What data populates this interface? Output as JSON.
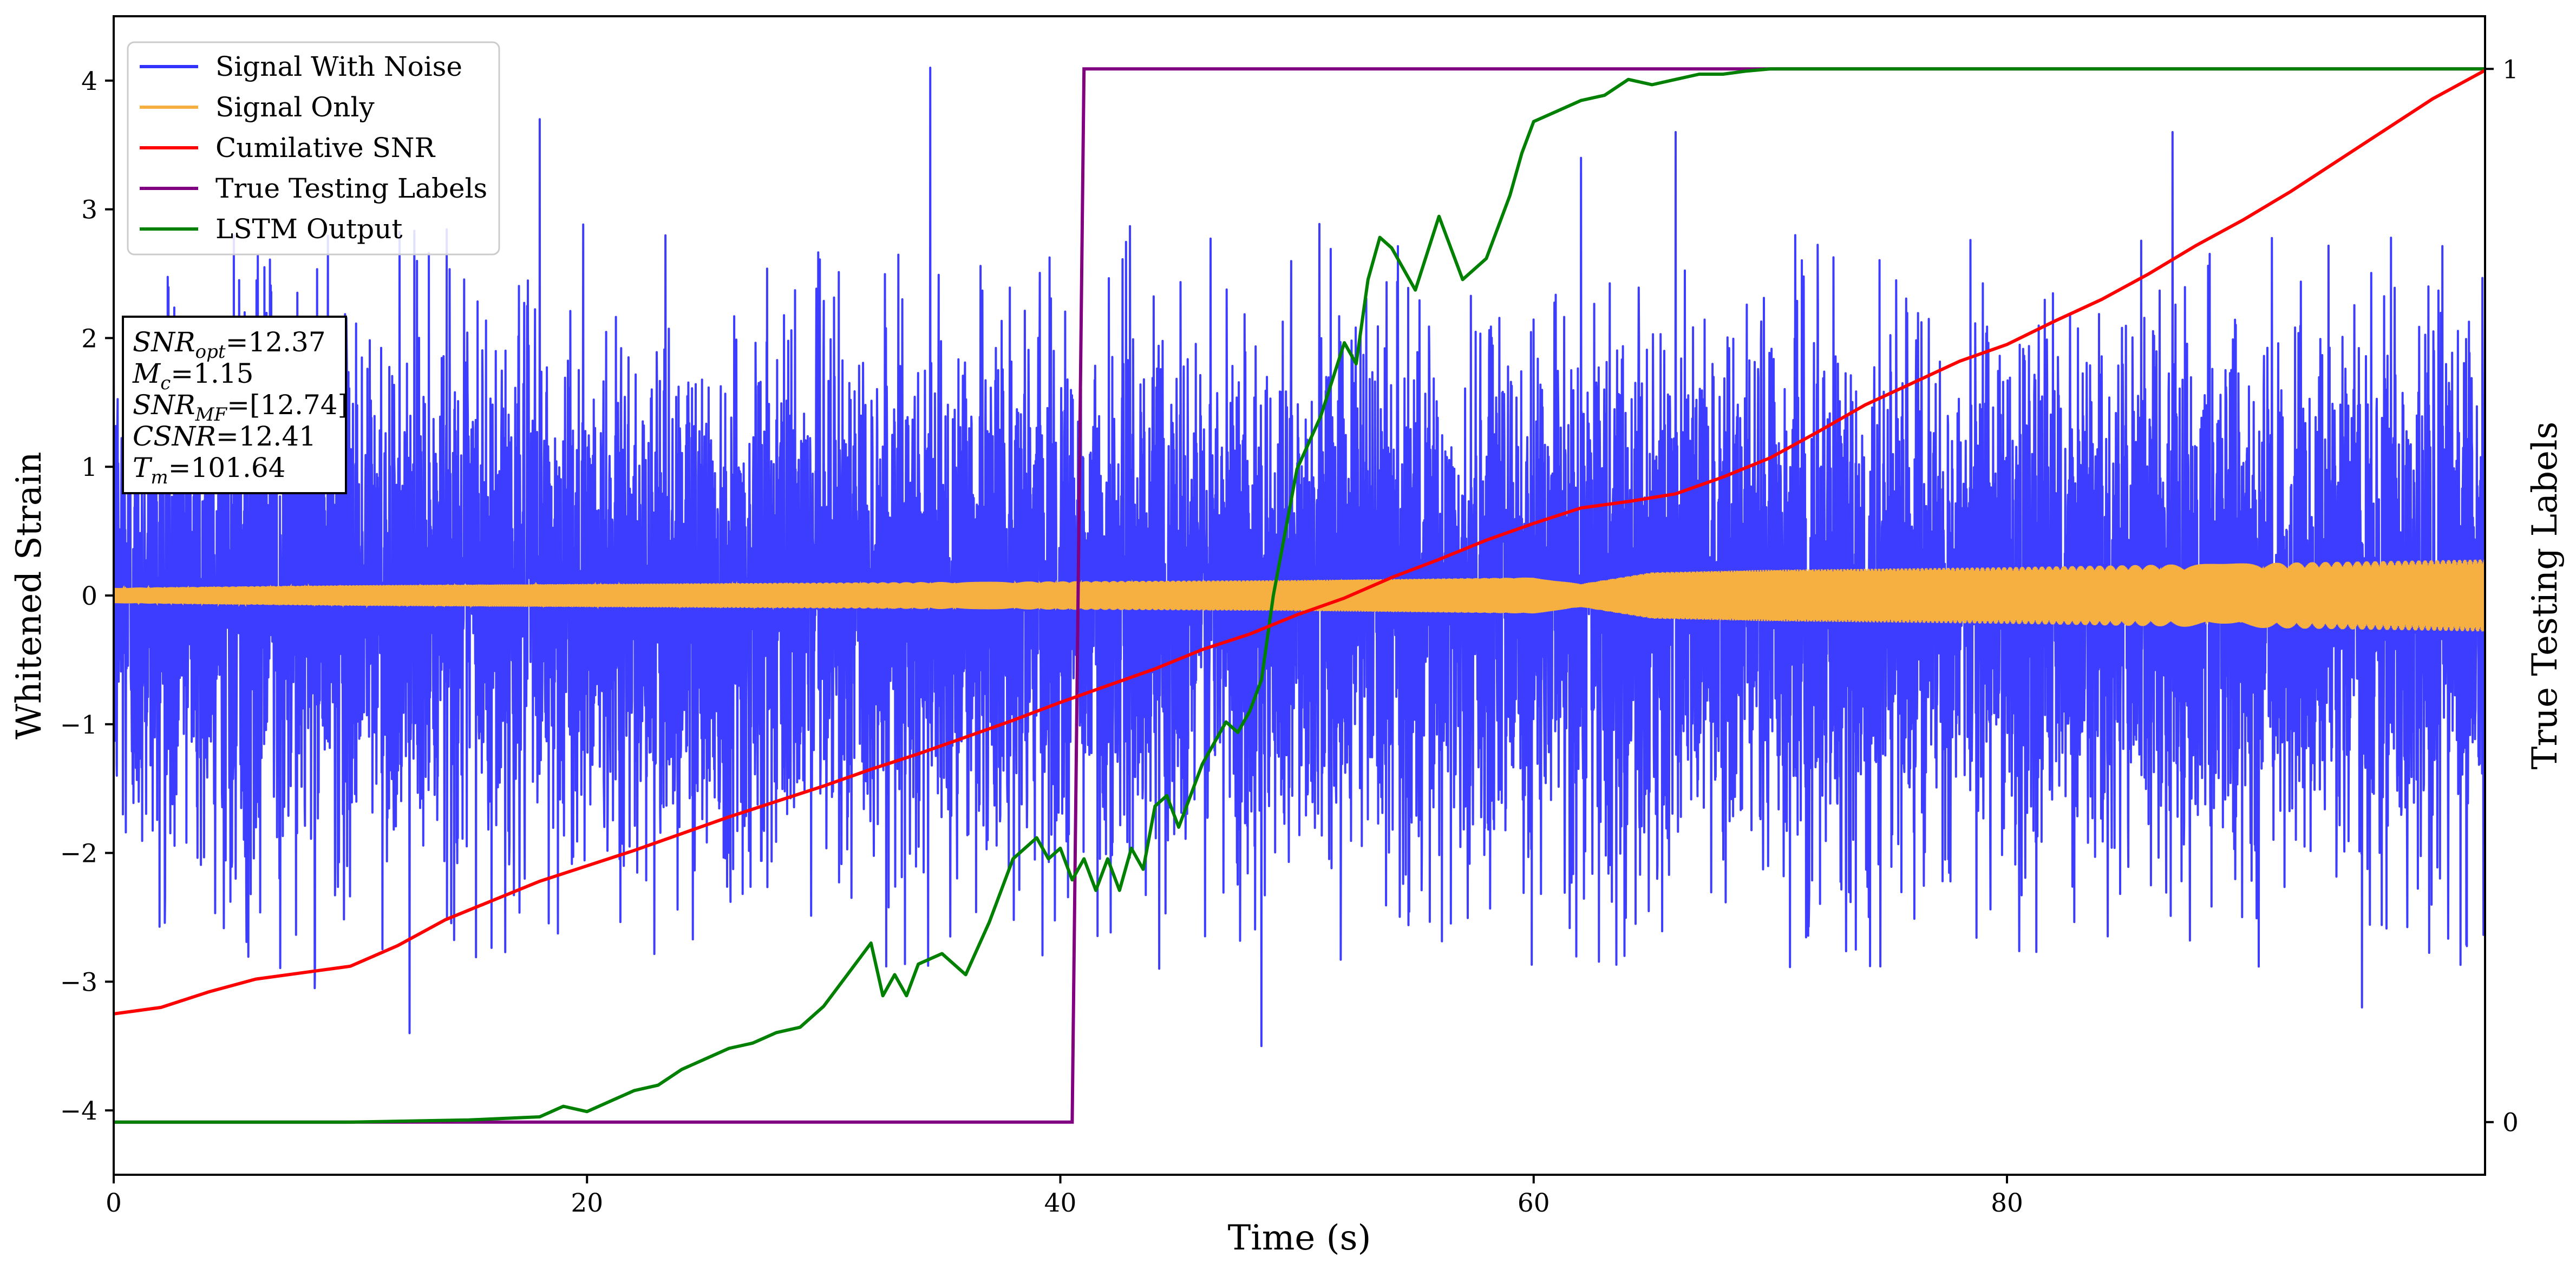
{
  "chart_data": {
    "type": "line",
    "title": "",
    "xlabel": "Time (s)",
    "ylabel": "Whitened Strain",
    "y2label": "True Testing Labels",
    "xlim": [
      0,
      100.2
    ],
    "ylim": [
      -4.5,
      4.5
    ],
    "y2lim": [
      -0.05,
      1.05
    ],
    "xticks": [
      0,
      20,
      40,
      60,
      80
    ],
    "xtick_labels": [
      "0",
      "20",
      "40",
      "60",
      "80"
    ],
    "yticks": [
      -4,
      -3,
      -2,
      -1,
      0,
      1,
      2,
      3,
      4
    ],
    "ytick_labels": [
      "−4",
      "−3",
      "−2",
      "−1",
      "0",
      "1",
      "2",
      "3",
      "4"
    ],
    "y2ticks": [
      0,
      1
    ],
    "y2tick_labels": [
      "0",
      "1"
    ],
    "legend_position": "top-left",
    "legend": [
      {
        "label": "Signal With Noise",
        "color": "#3333ff"
      },
      {
        "label": "Signal Only",
        "color": "#f5b041"
      },
      {
        "label": "Cumilative SNR",
        "color": "#ff0000"
      },
      {
        "label": "True Testing Labels",
        "color": "#800080"
      },
      {
        "label": "LSTM Output",
        "color": "#008000"
      }
    ],
    "info_box": [
      {
        "main": "SNR",
        "sub": "opt",
        "value": "=12.37"
      },
      {
        "main": "M",
        "sub": "c",
        "value": "=1.15"
      },
      {
        "main": "SNR",
        "sub": "MF",
        "value": "=[12.74]"
      },
      {
        "main": "CSNR",
        "sub": "",
        "value": "=12.41"
      },
      {
        "main": "T",
        "sub": "m",
        "value": "=101.64"
      }
    ],
    "series": [
      {
        "name": "Signal With Noise",
        "axis": "left",
        "color": "#3333ff",
        "description": "dense noisy strain, typical envelope about +/-2.6, max spike 4.1 near t=34.5, min -3.5 near t=48.5",
        "noise_std": 1.0,
        "spikes": [
          [
            34.5,
            4.1
          ],
          [
            48.5,
            -3.5
          ],
          [
            12.5,
            -3.4
          ],
          [
            95,
            -3.2
          ],
          [
            8.5,
            -3.05
          ],
          [
            66,
            3.6
          ],
          [
            87,
            3.6
          ],
          [
            18,
            3.7
          ],
          [
            62,
            3.4
          ]
        ]
      },
      {
        "name": "Signal Only",
        "axis": "left",
        "color": "#f5b041",
        "envelope": {
          "x": [
            0,
            10,
            20,
            30,
            40,
            50,
            55,
            60,
            62,
            65,
            70,
            80,
            90,
            100.2
          ],
          "y": [
            0.06,
            0.08,
            0.09,
            0.1,
            0.11,
            0.12,
            0.13,
            0.14,
            0.09,
            0.18,
            0.2,
            0.22,
            0.25,
            0.28
          ]
        }
      },
      {
        "name": "Cumilative SNR",
        "axis": "left",
        "color": "#ff0000",
        "x": [
          0,
          2,
          4,
          6,
          8,
          10,
          12,
          14,
          16,
          18,
          20,
          22,
          24,
          26,
          28,
          30,
          32,
          34,
          36,
          38,
          40,
          42,
          44,
          46,
          48,
          50,
          52,
          54,
          56,
          58,
          60,
          62,
          64,
          66,
          68,
          70,
          72,
          74,
          76,
          78,
          80,
          82,
          84,
          86,
          88,
          90,
          92,
          94,
          96,
          98,
          100.2
        ],
        "y": [
          -3.25,
          -3.2,
          -3.08,
          -2.98,
          -2.93,
          -2.88,
          -2.72,
          -2.52,
          -2.37,
          -2.22,
          -2.1,
          -1.98,
          -1.85,
          -1.72,
          -1.6,
          -1.48,
          -1.35,
          -1.23,
          -1.1,
          -0.97,
          -0.83,
          -0.7,
          -0.57,
          -0.42,
          -0.3,
          -0.15,
          -0.02,
          0.14,
          0.28,
          0.43,
          0.56,
          0.68,
          0.73,
          0.79,
          0.92,
          1.07,
          1.27,
          1.48,
          1.65,
          1.82,
          1.95,
          2.13,
          2.3,
          2.5,
          2.72,
          2.92,
          3.14,
          3.38,
          3.62,
          3.86,
          4.08
        ]
      },
      {
        "name": "True Testing Labels",
        "axis": "right",
        "color": "#800080",
        "x": [
          0,
          40.5,
          41.0,
          100.2
        ],
        "y": [
          0,
          0,
          1,
          1
        ]
      },
      {
        "name": "LSTM Output",
        "axis": "right",
        "color": "#008000",
        "x": [
          0,
          10,
          15,
          18,
          19,
          20,
          21,
          22,
          23,
          24,
          25,
          26,
          27,
          28,
          29,
          30,
          31,
          32,
          32.5,
          33,
          33.5,
          34,
          35,
          36,
          37,
          38,
          39,
          39.5,
          40,
          40.5,
          41,
          41.5,
          42,
          42.5,
          43,
          43.5,
          44,
          44.5,
          45,
          46,
          47,
          47.5,
          48,
          48.5,
          49,
          50,
          51,
          52,
          52.5,
          53,
          53.5,
          54,
          55,
          56,
          57,
          58,
          58.5,
          59,
          59.5,
          60,
          61,
          62,
          63,
          64,
          65,
          66,
          67,
          68,
          69,
          70,
          72,
          74,
          80,
          90,
          100.2
        ],
        "y": [
          0,
          0,
          0.002,
          0.005,
          0.015,
          0.01,
          0.02,
          0.03,
          0.035,
          0.05,
          0.06,
          0.07,
          0.075,
          0.085,
          0.09,
          0.11,
          0.14,
          0.17,
          0.12,
          0.14,
          0.12,
          0.15,
          0.16,
          0.14,
          0.19,
          0.25,
          0.27,
          0.25,
          0.26,
          0.23,
          0.25,
          0.22,
          0.25,
          0.22,
          0.26,
          0.24,
          0.3,
          0.31,
          0.28,
          0.34,
          0.38,
          0.37,
          0.39,
          0.42,
          0.5,
          0.62,
          0.67,
          0.74,
          0.72,
          0.8,
          0.84,
          0.83,
          0.79,
          0.86,
          0.8,
          0.82,
          0.85,
          0.88,
          0.92,
          0.95,
          0.96,
          0.97,
          0.975,
          0.99,
          0.985,
          0.99,
          0.995,
          0.995,
          0.998,
          1.0,
          1.0,
          1.0,
          1.0,
          1.0,
          1.0
        ]
      }
    ]
  }
}
